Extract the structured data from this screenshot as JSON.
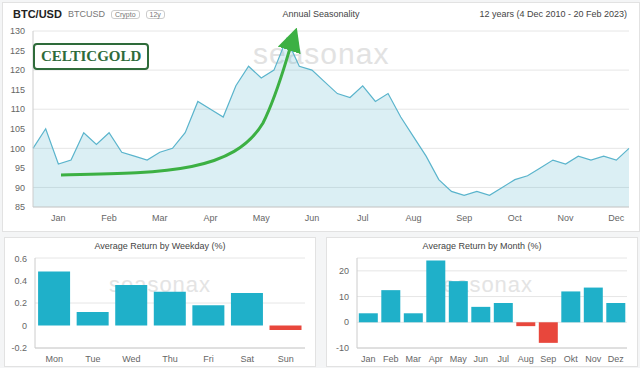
{
  "header": {
    "symbol": "BTC/USD",
    "code": "BTCUSD",
    "badges": [
      "Crypto",
      "12y"
    ],
    "title": "Annual Seasonality",
    "period": "12 years (4 Dec 2010 - 20 Feb 2023)"
  },
  "logo": "CELTICGOLD",
  "watermark": "seasonax",
  "chart_data": [
    {
      "type": "area",
      "categories": [
        null,
        null,
        "Jan",
        null,
        null,
        null,
        "Feb",
        null,
        null,
        null,
        "Mar",
        null,
        null,
        null,
        "Apr",
        null,
        null,
        null,
        "May",
        null,
        null,
        null,
        "Jun",
        null,
        null,
        null,
        "Jul",
        null,
        null,
        null,
        "Aug",
        null,
        null,
        null,
        "Sep",
        null,
        null,
        null,
        "Oct",
        null,
        null,
        null,
        "Nov",
        null,
        null,
        null,
        "Dec",
        null
      ],
      "values": [
        100,
        105,
        96,
        97,
        104,
        101,
        104,
        99,
        98,
        97,
        99,
        100,
        104,
        112,
        110,
        108,
        116,
        121,
        118,
        120,
        128,
        121,
        120,
        117,
        114,
        113,
        116,
        112,
        114,
        108,
        103,
        98,
        92,
        89,
        88,
        89,
        88,
        90,
        92,
        93,
        95,
        97,
        96,
        98,
        97,
        98,
        97,
        100
      ],
      "color": "#5ab4cc",
      "ylim": [
        85,
        130
      ],
      "yticks": [
        85,
        90,
        95,
        100,
        105,
        110,
        115,
        120,
        125,
        130
      ],
      "grid": true
    },
    {
      "type": "bar",
      "title": "Average Return by Weekday (%)",
      "categories": [
        "Mon",
        "Tue",
        "Wed",
        "Thu",
        "Fri",
        "Sat",
        "Sun"
      ],
      "values": [
        0.48,
        0.12,
        0.36,
        0.3,
        0.18,
        0.29,
        -0.04
      ],
      "colors": [
        "#1fb0c9",
        "#1fb0c9",
        "#1fb0c9",
        "#1fb0c9",
        "#1fb0c9",
        "#1fb0c9",
        "#e8473c"
      ],
      "ylim": [
        -0.2,
        0.6
      ],
      "yticks": [
        -0.2,
        0,
        0.2,
        0.4,
        0.6
      ],
      "grid": true
    },
    {
      "type": "bar",
      "title": "Average Return by Month (%)",
      "categories": [
        "Jan",
        "Feb",
        "Mar",
        "Apr",
        "May",
        "Jun",
        "Jul",
        "Aug",
        "Sep",
        "Okt",
        "Nov",
        "Dez"
      ],
      "values": [
        3.5,
        12.5,
        3.5,
        24,
        16,
        6,
        7.5,
        -1.5,
        -8,
        12,
        13.5,
        7.5
      ],
      "colors": [
        "#1fb0c9",
        "#1fb0c9",
        "#1fb0c9",
        "#1fb0c9",
        "#1fb0c9",
        "#1fb0c9",
        "#1fb0c9",
        "#e8473c",
        "#e8473c",
        "#1fb0c9",
        "#1fb0c9",
        "#1fb0c9"
      ],
      "ylim": [
        -10,
        25
      ],
      "yticks": [
        -10,
        0,
        10,
        20
      ],
      "grid": true
    }
  ]
}
